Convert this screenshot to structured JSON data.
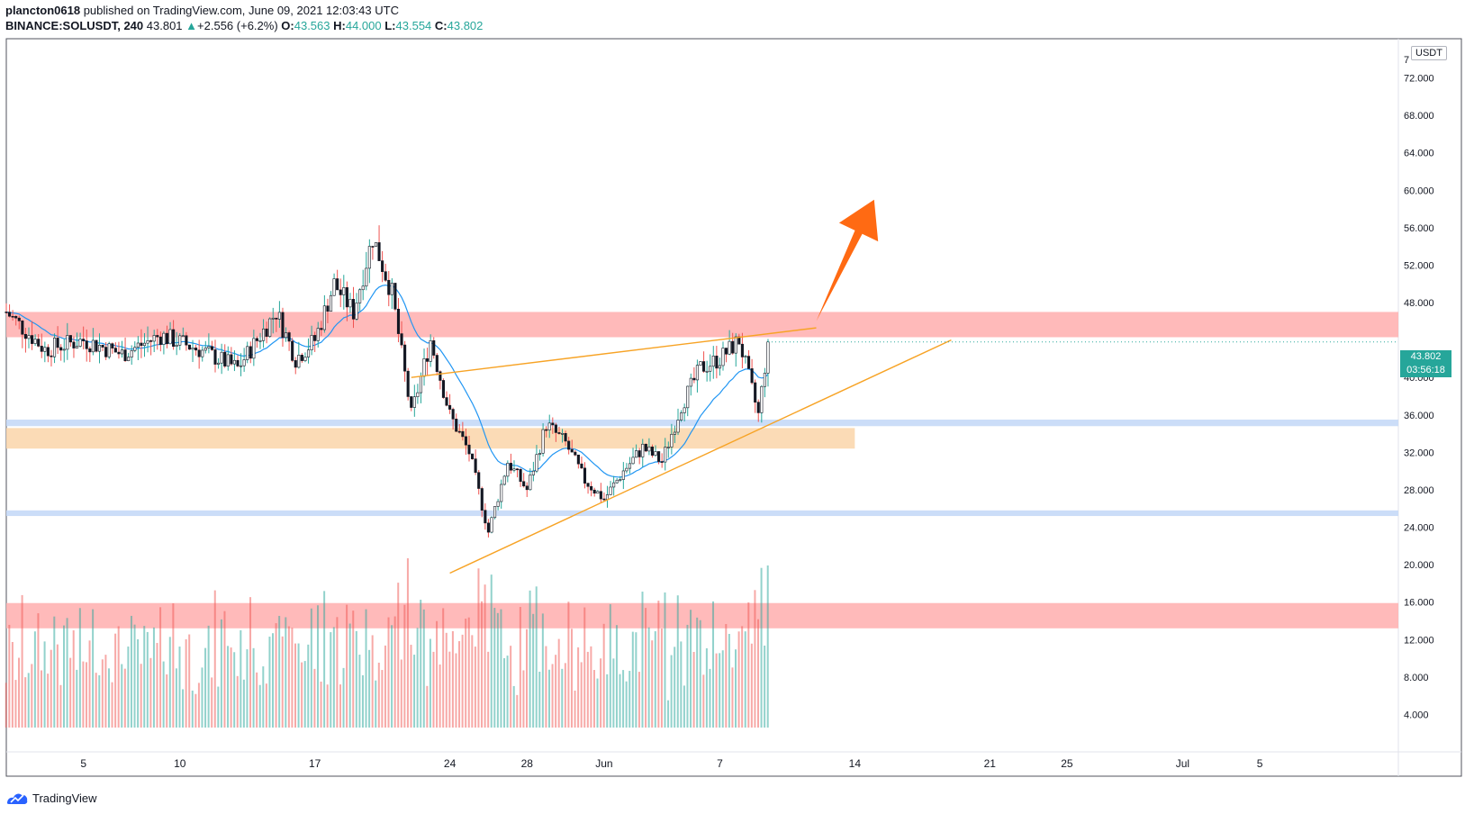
{
  "header": {
    "line1": {
      "author": "plancton0618",
      "rest": " published on TradingView.com, June 09, 2021 12:03:43 UTC"
    },
    "line2": {
      "symbol": "BINANCE:SOLUSDT, 240",
      "last": "43.801",
      "change": "+2.556 (+6.2%)",
      "o_label": "O:",
      "o": "43.563",
      "h_label": "H:",
      "h": "44.000",
      "l_label": "L:",
      "l": "43.554",
      "c_label": "C:",
      "c": "43.802"
    }
  },
  "currency_label": "USDT",
  "price_tag": {
    "price": "43.802",
    "countdown": "03:56:18"
  },
  "footer": {
    "brand": "TradingView"
  },
  "colors": {
    "up": "#26a69a",
    "down": "#ef5350",
    "ema": "#2196f3",
    "resistance_zone": "#ffb3b3",
    "support_blue": "#c5d9f7",
    "support_orange": "#fbd7ae",
    "trendline": "#f7a325",
    "arrow": "#ff6a13"
  },
  "chart_data": {
    "type": "candlestick",
    "symbol": "BINANCE:SOLUSDT",
    "timeframe": "240",
    "y_axis": {
      "min": 0,
      "max": 76,
      "ticks": [
        "72.000",
        "68.000",
        "64.000",
        "60.000",
        "56.000",
        "52.000",
        "48.000",
        "40.000",
        "36.000",
        "32.000",
        "28.000",
        "24.000",
        "20.000",
        "16.000",
        "12.000",
        "8.000",
        "4.000"
      ],
      "top_partial": "7"
    },
    "x_axis": {
      "ticks": [
        {
          "label": "5",
          "date": "2021-05-05"
        },
        {
          "label": "10",
          "date": "2021-05-10"
        },
        {
          "label": "17",
          "date": "2021-05-17"
        },
        {
          "label": "24",
          "date": "2021-05-24"
        },
        {
          "label": "28",
          "date": "2021-05-28"
        },
        {
          "label": "Jun",
          "date": "2021-06-01"
        },
        {
          "label": "7",
          "date": "2021-06-07"
        },
        {
          "label": "14",
          "date": "2021-06-14"
        },
        {
          "label": "21",
          "date": "2021-06-21"
        },
        {
          "label": "25",
          "date": "2021-06-25"
        },
        {
          "label": "Jul",
          "date": "2021-07-01"
        },
        {
          "label": "5",
          "date": "2021-07-05"
        }
      ]
    },
    "start_date": "2021-05-01",
    "end_date": "2021-07-12",
    "first_bar": "2021-05-01",
    "last_bar": "2021-06-09",
    "price_path": [
      [
        "2021-05-01",
        47
      ],
      [
        "2021-05-02",
        45
      ],
      [
        "2021-05-03",
        43
      ],
      [
        "2021-05-05",
        44
      ],
      [
        "2021-05-07",
        42.5
      ],
      [
        "2021-05-09",
        44.5
      ],
      [
        "2021-05-11",
        43
      ],
      [
        "2021-05-13",
        41
      ],
      [
        "2021-05-14",
        44
      ],
      [
        "2021-05-15",
        47
      ],
      [
        "2021-05-16",
        42
      ],
      [
        "2021-05-17",
        44
      ],
      [
        "2021-05-18",
        50
      ],
      [
        "2021-05-19",
        47
      ],
      [
        "2021-05-20",
        55
      ],
      [
        "2021-05-21",
        49
      ],
      [
        "2021-05-22",
        36
      ],
      [
        "2021-05-23",
        44
      ],
      [
        "2021-05-24",
        36
      ],
      [
        "2021-05-25",
        32
      ],
      [
        "2021-05-26",
        23.5
      ],
      [
        "2021-05-27",
        31
      ],
      [
        "2021-05-28",
        28
      ],
      [
        "2021-05-29",
        35
      ],
      [
        "2021-05-30",
        33
      ],
      [
        "2021-05-31",
        29
      ],
      [
        "2021-06-01",
        27
      ],
      [
        "2021-06-02",
        30
      ],
      [
        "2021-06-03",
        32.5
      ],
      [
        "2021-06-04",
        31
      ],
      [
        "2021-06-05",
        37
      ],
      [
        "2021-06-06",
        41
      ],
      [
        "2021-06-07",
        42
      ],
      [
        "2021-06-08",
        44
      ],
      [
        "2021-06-09",
        36
      ],
      [
        "2021-06-09",
        43.8
      ]
    ],
    "last_close": 43.802,
    "zones": [
      {
        "kind": "resistance",
        "from": 44.3,
        "to": 47,
        "color": "#ffb3b3"
      },
      {
        "kind": "support",
        "from": 34.8,
        "to": 35.5,
        "color": "#c5d9f7"
      },
      {
        "kind": "support",
        "from": 32.4,
        "to": 34.6,
        "color": "#fbd7ae",
        "until": "2021-06-14"
      },
      {
        "kind": "support",
        "from": 25.2,
        "to": 25.8,
        "color": "#c5d9f7"
      },
      {
        "kind": "resistance",
        "from": 13.2,
        "to": 15.9,
        "color": "#ffb3b3"
      }
    ],
    "trendlines": [
      {
        "from": [
          "2021-05-22",
          40
        ],
        "to": [
          "2021-06-12",
          45.3
        ]
      },
      {
        "from": [
          "2021-05-24",
          19.1
        ],
        "to": [
          "2021-06-19",
          44
        ]
      }
    ],
    "arrow": {
      "from": [
        "2021-06-12",
        46
      ],
      "to": [
        "2021-06-15",
        59
      ]
    },
    "volume": {
      "unit": "relative",
      "max": 1.0
    }
  }
}
